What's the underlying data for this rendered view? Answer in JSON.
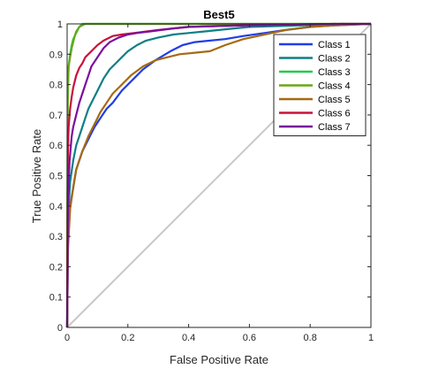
{
  "chart_data": {
    "type": "line",
    "title": "Best5",
    "xlabel": "False Positive Rate",
    "ylabel": "True Positive Rate",
    "xlim": [
      0,
      1
    ],
    "ylim": [
      0,
      1
    ],
    "xticks": [
      "0",
      "0.2",
      "0.4",
      "0.6",
      "0.8",
      "1"
    ],
    "yticks": [
      "0",
      "0.1",
      "0.2",
      "0.3",
      "0.4",
      "0.5",
      "0.6",
      "0.7",
      "0.8",
      "0.9",
      "1"
    ],
    "grid": false,
    "legend_position": "top-right",
    "diagonal": {
      "x": [
        0,
        1
      ],
      "y": [
        0,
        1
      ],
      "color": "#c8c8c8"
    },
    "series": [
      {
        "name": "Class 1",
        "color": "#1f3ee6",
        "x": [
          0,
          0.003,
          0.01,
          0.02,
          0.03,
          0.05,
          0.07,
          0.09,
          0.11,
          0.13,
          0.15,
          0.18,
          0.21,
          0.25,
          0.29,
          0.34,
          0.38,
          0.42,
          0.47,
          0.52,
          0.58,
          0.65,
          0.72,
          0.8,
          0.88,
          0.95,
          1
        ],
        "y": [
          0,
          0.28,
          0.4,
          0.46,
          0.52,
          0.58,
          0.62,
          0.66,
          0.69,
          0.72,
          0.74,
          0.78,
          0.81,
          0.85,
          0.88,
          0.91,
          0.93,
          0.94,
          0.945,
          0.95,
          0.96,
          0.97,
          0.98,
          0.99,
          0.995,
          0.998,
          1
        ]
      },
      {
        "name": "Class 2",
        "color": "#0e7f86",
        "x": [
          0,
          0.003,
          0.01,
          0.02,
          0.03,
          0.04,
          0.05,
          0.06,
          0.07,
          0.08,
          0.1,
          0.12,
          0.14,
          0.16,
          0.18,
          0.2,
          0.23,
          0.26,
          0.3,
          0.35,
          0.4,
          0.45,
          0.5,
          0.55,
          0.6,
          0.7,
          0.8,
          0.9,
          1
        ],
        "y": [
          0,
          0.36,
          0.48,
          0.55,
          0.6,
          0.63,
          0.66,
          0.69,
          0.72,
          0.74,
          0.78,
          0.82,
          0.85,
          0.87,
          0.89,
          0.91,
          0.93,
          0.945,
          0.955,
          0.965,
          0.97,
          0.975,
          0.98,
          0.985,
          0.99,
          0.993,
          0.996,
          0.998,
          1
        ]
      },
      {
        "name": "Class 3",
        "color": "#22cc4c",
        "x": [
          0,
          0.002,
          0.005,
          0.01,
          0.015,
          0.02,
          0.03,
          0.04,
          0.05,
          0.06,
          0.1,
          0.2,
          0.4,
          0.6,
          0.8,
          1
        ],
        "y": [
          0,
          0.75,
          0.86,
          0.9,
          0.93,
          0.95,
          0.97,
          0.99,
          1.0,
          1.0,
          1.0,
          1.0,
          1.0,
          1.0,
          1.0,
          1.0
        ]
      },
      {
        "name": "Class 4",
        "color": "#6aa618",
        "x": [
          0,
          0.002,
          0.005,
          0.01,
          0.015,
          0.02,
          0.025,
          0.03,
          0.04,
          0.05,
          0.06,
          0.1,
          0.2,
          0.4,
          0.6,
          0.8,
          1
        ],
        "y": [
          0,
          0.78,
          0.86,
          0.89,
          0.92,
          0.94,
          0.96,
          0.975,
          0.99,
          0.995,
          1.0,
          1.0,
          1.0,
          1.0,
          1.0,
          1.0,
          1.0
        ]
      },
      {
        "name": "Class 5",
        "color": "#a66a12",
        "x": [
          0,
          0.003,
          0.01,
          0.02,
          0.03,
          0.05,
          0.07,
          0.09,
          0.11,
          0.13,
          0.15,
          0.18,
          0.21,
          0.25,
          0.29,
          0.33,
          0.37,
          0.42,
          0.47,
          0.52,
          0.58,
          0.65,
          0.72,
          0.8,
          0.88,
          0.95,
          1
        ],
        "y": [
          0,
          0.26,
          0.39,
          0.46,
          0.52,
          0.58,
          0.63,
          0.67,
          0.71,
          0.74,
          0.77,
          0.8,
          0.83,
          0.86,
          0.88,
          0.89,
          0.9,
          0.905,
          0.91,
          0.93,
          0.95,
          0.965,
          0.98,
          0.99,
          0.995,
          0.998,
          1
        ]
      },
      {
        "name": "Class 6",
        "color": "#c8123a",
        "x": [
          0,
          0.002,
          0.005,
          0.01,
          0.015,
          0.02,
          0.03,
          0.04,
          0.05,
          0.06,
          0.08,
          0.1,
          0.12,
          0.15,
          0.18,
          0.22,
          0.26,
          0.3,
          0.35,
          0.4,
          0.5,
          0.6,
          0.7,
          0.8,
          0.9,
          1
        ],
        "y": [
          0,
          0.55,
          0.66,
          0.72,
          0.76,
          0.79,
          0.83,
          0.855,
          0.87,
          0.89,
          0.91,
          0.93,
          0.945,
          0.96,
          0.965,
          0.97,
          0.975,
          0.98,
          0.985,
          0.99,
          0.993,
          0.996,
          0.998,
          0.999,
          1.0,
          1
        ]
      },
      {
        "name": "Class 7",
        "color": "#7a0f9c",
        "x": [
          0,
          0.003,
          0.008,
          0.015,
          0.02,
          0.03,
          0.04,
          0.05,
          0.06,
          0.07,
          0.08,
          0.1,
          0.12,
          0.14,
          0.17,
          0.2,
          0.23,
          0.27,
          0.31,
          0.35,
          0.4,
          0.5,
          0.6,
          0.7,
          0.8,
          0.9,
          1
        ],
        "y": [
          0,
          0.42,
          0.55,
          0.63,
          0.66,
          0.7,
          0.74,
          0.77,
          0.8,
          0.83,
          0.86,
          0.89,
          0.92,
          0.94,
          0.955,
          0.965,
          0.97,
          0.975,
          0.98,
          0.985,
          0.99,
          0.993,
          0.995,
          0.997,
          0.999,
          1.0,
          1
        ]
      }
    ]
  }
}
